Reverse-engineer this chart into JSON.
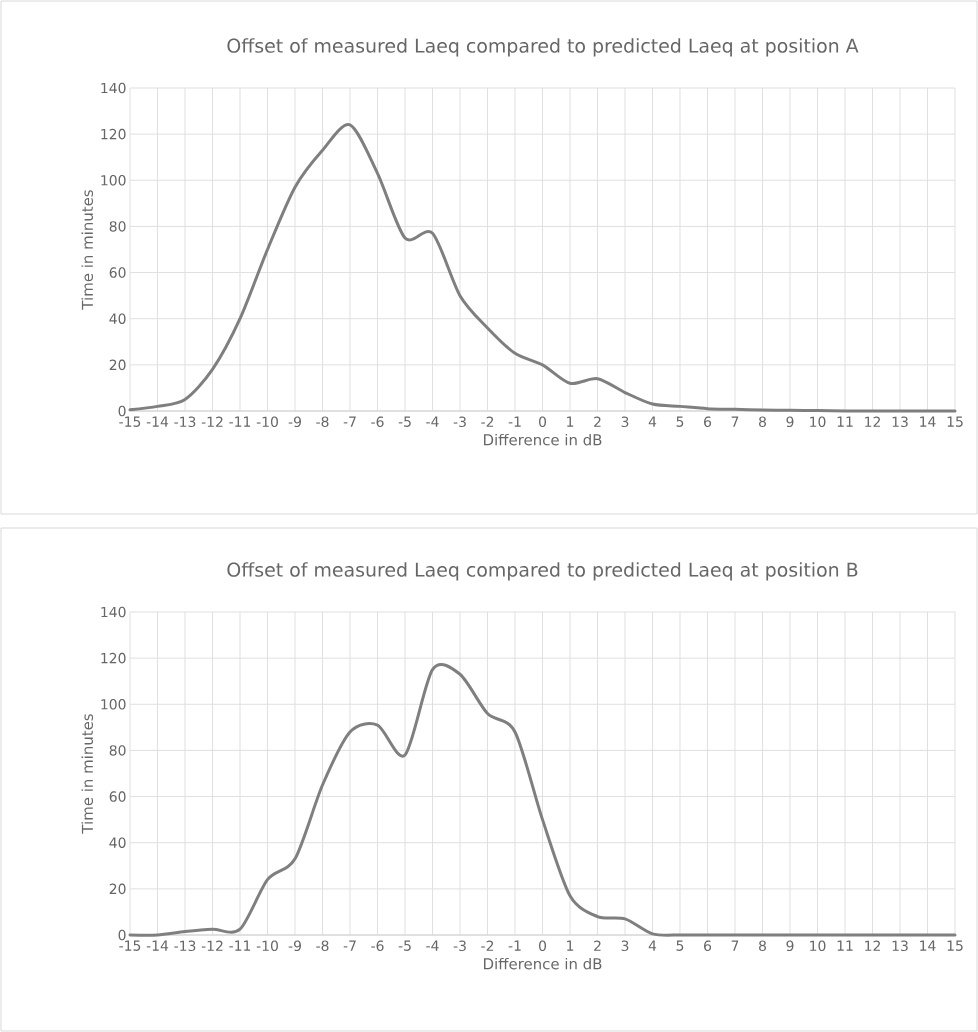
{
  "chart_data": [
    {
      "type": "line",
      "title": "Offset of measured Laeq compared to predicted Laeq at position A",
      "xlabel": "Difference in dB",
      "ylabel": "Time in minutes",
      "x": [
        -15,
        -14,
        -13,
        -12,
        -11,
        -10,
        -9,
        -8,
        -7,
        -6,
        -5,
        -4,
        -3,
        -2,
        -1,
        0,
        1,
        2,
        3,
        4,
        5,
        6,
        7,
        8,
        9,
        10,
        11,
        12,
        13,
        14,
        15
      ],
      "series": [
        {
          "color": "#7f7f7f",
          "values": [
            0.5,
            2,
            5,
            18,
            40,
            70,
            97,
            113,
            124,
            103,
            75,
            77,
            50,
            36,
            25,
            20,
            12,
            14,
            8,
            3,
            2,
            1,
            0.7,
            0.4,
            0.3,
            0.2,
            0,
            0,
            0,
            0,
            0
          ]
        }
      ],
      "xlim": [
        -15,
        15
      ],
      "xticks": [
        -15,
        -14,
        -13,
        -12,
        -11,
        -10,
        -9,
        -8,
        -7,
        -6,
        -5,
        -4,
        -3,
        -2,
        -1,
        0,
        1,
        2,
        3,
        4,
        5,
        6,
        7,
        8,
        9,
        10,
        11,
        12,
        13,
        14,
        15
      ],
      "ylim": [
        0,
        140
      ],
      "yticks": [
        0,
        20,
        40,
        60,
        80,
        100,
        120,
        140
      ],
      "grid": true,
      "marker": "none",
      "line_style": "solid"
    },
    {
      "type": "line",
      "title": "Offset of measured Laeq compared to predicted Laeq at position B",
      "xlabel": "Difference in dB",
      "ylabel": "Time in minutes",
      "x": [
        -15,
        -14,
        -13,
        -12,
        -11,
        -10,
        -9,
        -8,
        -7,
        -6,
        -5,
        -4,
        -3,
        -2,
        -1,
        0,
        1,
        2,
        3,
        4,
        5,
        6,
        7,
        8,
        9,
        10,
        11,
        12,
        13,
        14,
        15
      ],
      "series": [
        {
          "color": "#7f7f7f",
          "values": [
            0,
            0,
            1.5,
            2.5,
            2.5,
            24,
            33,
            65,
            88,
            91,
            78,
            115,
            113,
            96,
            88,
            50,
            17,
            8,
            7,
            0.5,
            0,
            0,
            0,
            0,
            0,
            0,
            0,
            0,
            0,
            0,
            0
          ]
        }
      ],
      "xlim": [
        -15,
        15
      ],
      "xticks": [
        -15,
        -14,
        -13,
        -12,
        -11,
        -10,
        -9,
        -8,
        -7,
        -6,
        -5,
        -4,
        -3,
        -2,
        -1,
        0,
        1,
        2,
        3,
        4,
        5,
        6,
        7,
        8,
        9,
        10,
        11,
        12,
        13,
        14,
        15
      ],
      "ylim": [
        0,
        140
      ],
      "yticks": [
        0,
        20,
        40,
        60,
        80,
        100,
        120,
        140
      ],
      "grid": true,
      "marker": "none",
      "line_style": "solid"
    }
  ]
}
